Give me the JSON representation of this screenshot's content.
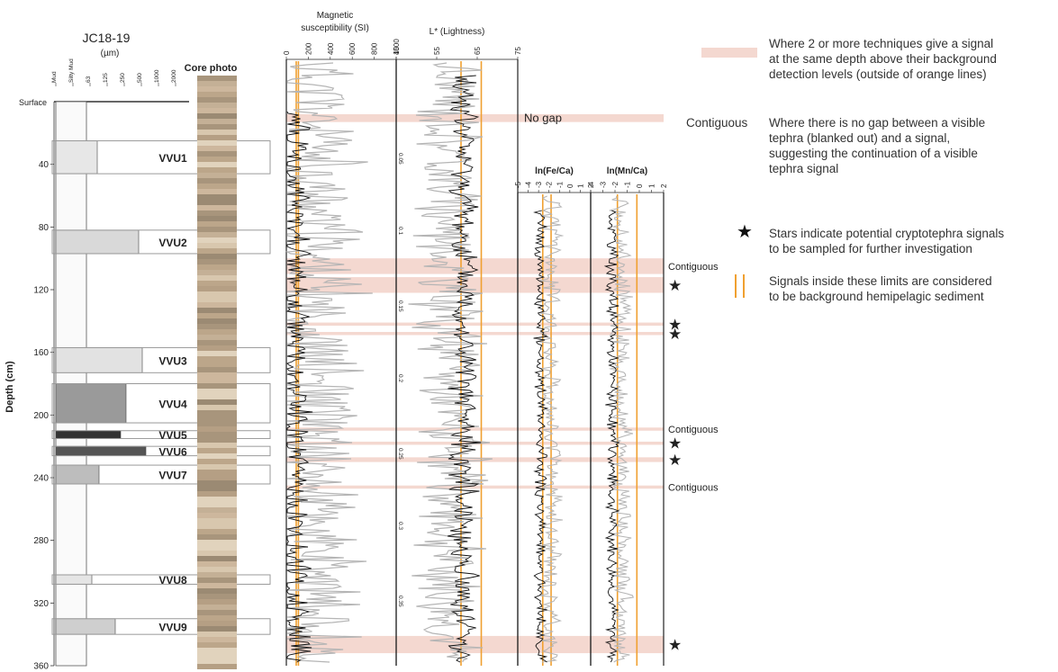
{
  "colors": {
    "highlight": "#f4d8d0",
    "orange": "#f0a030",
    "signal": "#111111",
    "gray": "#b5b5b5",
    "border": "#9a9a9a"
  },
  "core": {
    "title": "JC18-19",
    "grain_unit": "(µm)",
    "grain_ticks": [
      "Mud",
      "Silty Mud",
      "63",
      "125",
      "250",
      "500",
      "1000",
      "2000"
    ],
    "photo_label": "Core photo",
    "surface_label": "Surface",
    "depth_axis_label": "Depth (cm)",
    "depth_ticks": [
      "40",
      "80",
      "120",
      "160",
      "200",
      "240",
      "280",
      "320",
      "360"
    ],
    "units": [
      {
        "name": "VVU1",
        "top": 25,
        "bottom": 46
      },
      {
        "name": "VVU2",
        "top": 82,
        "bottom": 97
      },
      {
        "name": "VVU3",
        "top": 157,
        "bottom": 173
      },
      {
        "name": "VVU4",
        "top": 180,
        "bottom": 205
      },
      {
        "name": "VVU5",
        "top": 210,
        "bottom": 215
      },
      {
        "name": "VVU6",
        "top": 220,
        "bottom": 226
      },
      {
        "name": "VVU7",
        "top": 232,
        "bottom": 244
      },
      {
        "name": "VVU8",
        "top": 302,
        "bottom": 308
      },
      {
        "name": "VVU9",
        "top": 330,
        "bottom": 340
      }
    ]
  },
  "chart_data": [
    {
      "type": "line",
      "title": "Magnetic susceptibility (SI)",
      "xlim": [
        0,
        1000
      ],
      "x_ticks": [
        "0",
        "200",
        "400",
        "600",
        "800",
        "1000"
      ],
      "secondary_ticks": [
        "0.05",
        "0.1",
        "0.15",
        "0.2",
        "0.25",
        "0.3",
        "0.35"
      ],
      "ylabel": "Depth (cm)",
      "ylim": [
        0,
        360
      ],
      "background_limits": [
        90,
        110
      ]
    },
    {
      "type": "line",
      "title": "L* (Lightness)",
      "xlim": [
        45,
        75
      ],
      "x_ticks": [
        "45",
        "55",
        "65",
        "75"
      ],
      "background_limits": [
        61,
        66
      ]
    },
    {
      "type": "line",
      "title": "ln(Fe/Ca)",
      "xlim": [
        -5,
        2
      ],
      "x_ticks": [
        "-5",
        "-4",
        "-3",
        "-2",
        "-1",
        "0",
        "1",
        "2"
      ],
      "background_limits": [
        -2.6,
        -1.8
      ]
    },
    {
      "type": "line",
      "title": "ln(Mn/Ca)",
      "xlim": [
        -4,
        2
      ],
      "x_ticks": [
        "-4",
        "-3",
        "-2",
        "-1",
        "0",
        "1",
        "2"
      ],
      "background_limits": [
        -1.8,
        -0.2
      ]
    }
  ],
  "highlights": [
    {
      "top": 8,
      "bottom": 13,
      "label": "No gap",
      "star": false
    },
    {
      "top": 100,
      "bottom": 110,
      "label": "Contiguous",
      "star": false
    },
    {
      "top": 112,
      "bottom": 122,
      "label": "",
      "star": true
    },
    {
      "top": 141,
      "bottom": 143,
      "label": "",
      "star": true
    },
    {
      "top": 147,
      "bottom": 149,
      "label": "",
      "star": true
    },
    {
      "top": 208,
      "bottom": 210,
      "label": "Contiguous",
      "star": false
    },
    {
      "top": 217,
      "bottom": 219,
      "label": "",
      "star": true
    },
    {
      "top": 227,
      "bottom": 230,
      "label": "",
      "star": true
    },
    {
      "top": 245,
      "bottom": 247,
      "label": "Contiguous",
      "star": false
    },
    {
      "top": 341,
      "bottom": 352,
      "label": "",
      "star": true
    }
  ],
  "legend": {
    "box_text": "Where 2 or more techniques give a signal\nat the same depth above their background\ndetection levels (outside of orange lines)",
    "contiguous_word": "Contiguous",
    "contiguous_text": "Where there is no gap between a visible\ntephra (blanked out) and a signal,\nsuggesting the continuation of a visible\ntephra signal",
    "star_text": "Stars indicate potential cryptotephra signals\nto be sampled for further investigation",
    "lines_text": "Signals inside these limits are considered\nto be background hemipelagic sediment"
  }
}
